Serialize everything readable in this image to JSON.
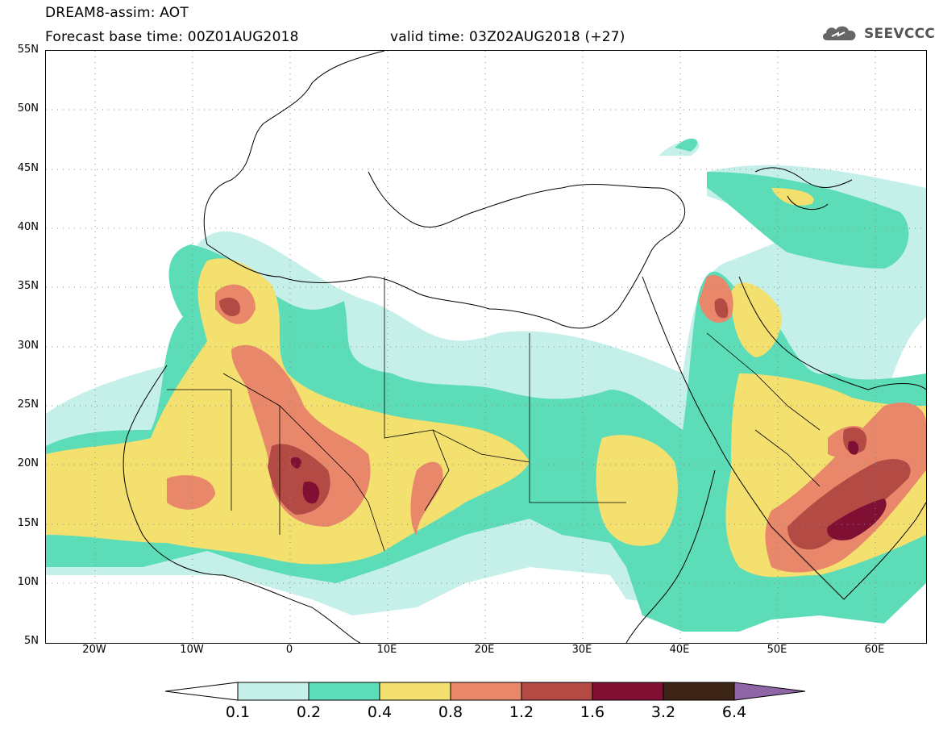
{
  "header": {
    "line1": "DREAM8-assim: AOT",
    "line2": "Forecast base time: 00Z01AUG2018",
    "line3": "valid time: 03Z02AUG2018 (+27)"
  },
  "logo": {
    "text": "SEEVCCC",
    "icon": "cloud-icon"
  },
  "axes": {
    "lat_labels": [
      "55N",
      "50N",
      "45N",
      "40N",
      "35N",
      "30N",
      "25N",
      "20N",
      "15N",
      "10N",
      "5N"
    ],
    "lon_labels": [
      "20W",
      "10W",
      "0",
      "10E",
      "20E",
      "30E",
      "40E",
      "50E",
      "60E"
    ]
  },
  "colorbar": {
    "labels": [
      "0.1",
      "0.2",
      "0.4",
      "0.8",
      "1.2",
      "1.6",
      "3.2",
      "6.4"
    ],
    "colors": [
      "#ffffff",
      "#c5f0ea",
      "#5ddcb8",
      "#f3e06e",
      "#e8876a",
      "#b34a44",
      "#7f0f33",
      "#3b2414",
      "#8f65a8"
    ]
  },
  "map": {
    "extent": {
      "lon_min": -25,
      "lon_max": 65,
      "lat_min": 5,
      "lat_max": 55
    },
    "gridlines": "dotted",
    "colors": {
      "level1": "#c5f0ea",
      "level2": "#5ddcb8",
      "level3": "#f3e06e",
      "level4": "#e8876a",
      "level5": "#b34a44",
      "level6": "#7f0f33"
    }
  }
}
